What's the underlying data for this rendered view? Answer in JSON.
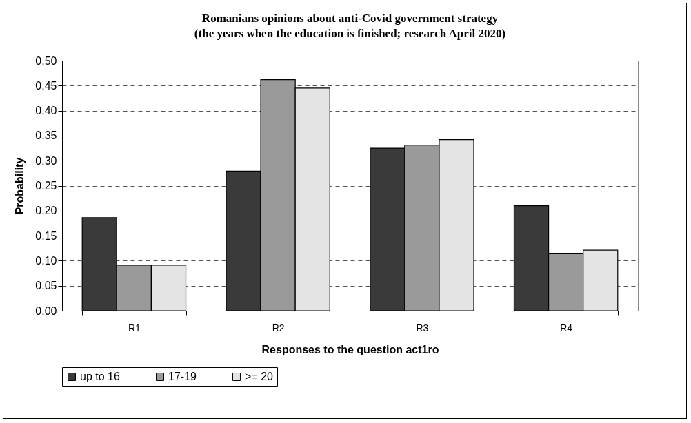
{
  "chart_data": {
    "type": "bar",
    "title": [
      "Romanians opinions about anti-Covid government  strategy",
      "(the years when the education is finished; research April 2020)"
    ],
    "xlabel": "Responses to the question act1ro",
    "ylabel": "Probability",
    "categories": [
      "R1",
      "R2",
      "R3",
      "R4"
    ],
    "series": [
      {
        "name": "up to 16",
        "color": "#3a3a3a",
        "values": [
          0.186,
          0.279,
          0.325,
          0.21
        ]
      },
      {
        "name": "17-19",
        "color": "#9a9a9a",
        "values": [
          0.091,
          0.462,
          0.331,
          0.115
        ]
      },
      {
        "name": ">= 20",
        "color": "#e4e4e4",
        "values": [
          0.091,
          0.445,
          0.342,
          0.121
        ]
      }
    ],
    "ylim": [
      0,
      0.5
    ],
    "yticks": [
      {
        "value": 0,
        "label": "0.00"
      },
      {
        "value": 0.05,
        "label": "0.05"
      },
      {
        "value": 0.1,
        "label": "0.10"
      },
      {
        "value": 0.15,
        "label": "0.15"
      },
      {
        "value": 0.2,
        "label": "0.20"
      },
      {
        "value": 0.25,
        "label": "0.25"
      },
      {
        "value": 0.3,
        "label": "0.30"
      },
      {
        "value": 0.35,
        "label": "0.35"
      },
      {
        "value": 0.4,
        "label": "0.40"
      },
      {
        "value": 0.45,
        "label": "0.45"
      },
      {
        "value": 0.5,
        "label": "0.50"
      }
    ],
    "grid": "y",
    "legend": "bottom"
  }
}
